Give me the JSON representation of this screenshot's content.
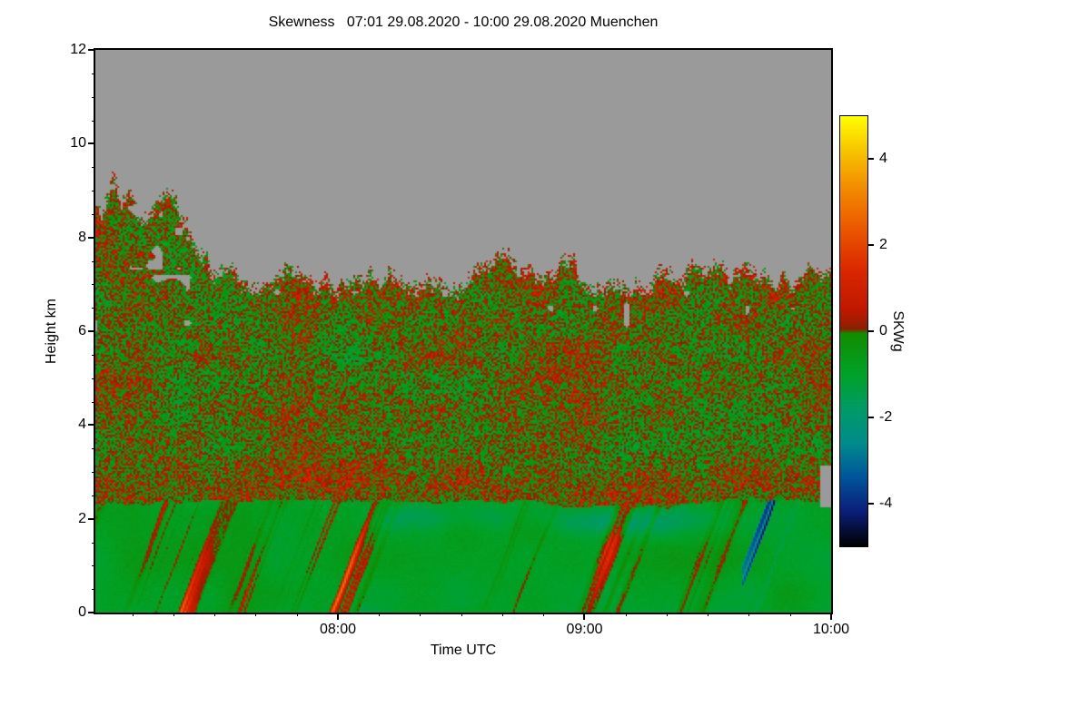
{
  "chart_data": {
    "type": "heatmap",
    "title": "Skewness   07:01 29.08.2020 - 10:00 29.08.2020 Muenchen",
    "site": "Muenchen",
    "time_start": "07:01 29.08.2020",
    "time_end": "10:00 29.08.2020",
    "xlabel": "Time UTC",
    "ylabel": "Height km",
    "x_total_minutes": 179,
    "x_ticks": [
      {
        "label": "08:00",
        "minutes": 59
      },
      {
        "label": "09:00",
        "minutes": 119
      },
      {
        "label": "10:00",
        "minutes": 179
      }
    ],
    "x_minor_every_minutes": 10,
    "ylim": [
      0,
      12
    ],
    "y_ticks": [
      0,
      2,
      4,
      6,
      8,
      10,
      12
    ],
    "y_minor_step": 0.5,
    "colorbar": {
      "label": "SKWg",
      "limits": [
        -5,
        5
      ],
      "ticks": [
        4,
        2,
        0,
        -2,
        -4
      ],
      "stops": [
        [
          -5.0,
          "#000000"
        ],
        [
          -4.2,
          "#0a1e78"
        ],
        [
          -3.4,
          "#00549b"
        ],
        [
          -2.6,
          "#008c8c"
        ],
        [
          -1.8,
          "#009a66"
        ],
        [
          -1.0,
          "#00a228"
        ],
        [
          -0.05,
          "#128c00"
        ],
        [
          0.05,
          "#8c2000"
        ],
        [
          0.5,
          "#c01800"
        ],
        [
          1.4,
          "#d92600"
        ],
        [
          2.4,
          "#ec5800"
        ],
        [
          3.4,
          "#f39000"
        ],
        [
          4.3,
          "#f8cc00"
        ],
        [
          5.0,
          "#ffff00"
        ]
      ]
    },
    "field": {
      "no_signal_color": "#9a9a9a",
      "echo_top_base_km": 7.15,
      "echo_top_left_max_km": 10.0,
      "boundary_layer_top_km": 2.33,
      "streak_slope_cells_per_km": 10,
      "fall_streak_events": [
        [
          0.105,
          0.035,
          1.05
        ],
        [
          0.205,
          0.02,
          0.4
        ],
        [
          0.33,
          0.045,
          1.1
        ],
        [
          0.44,
          0.025,
          0.35
        ],
        [
          0.58,
          0.03,
          0.4
        ],
        [
          0.7,
          0.03,
          0.5
        ],
        [
          0.8,
          0.035,
          0.55
        ],
        [
          0.92,
          0.05,
          0.95
        ]
      ],
      "seed": 1234
    }
  }
}
